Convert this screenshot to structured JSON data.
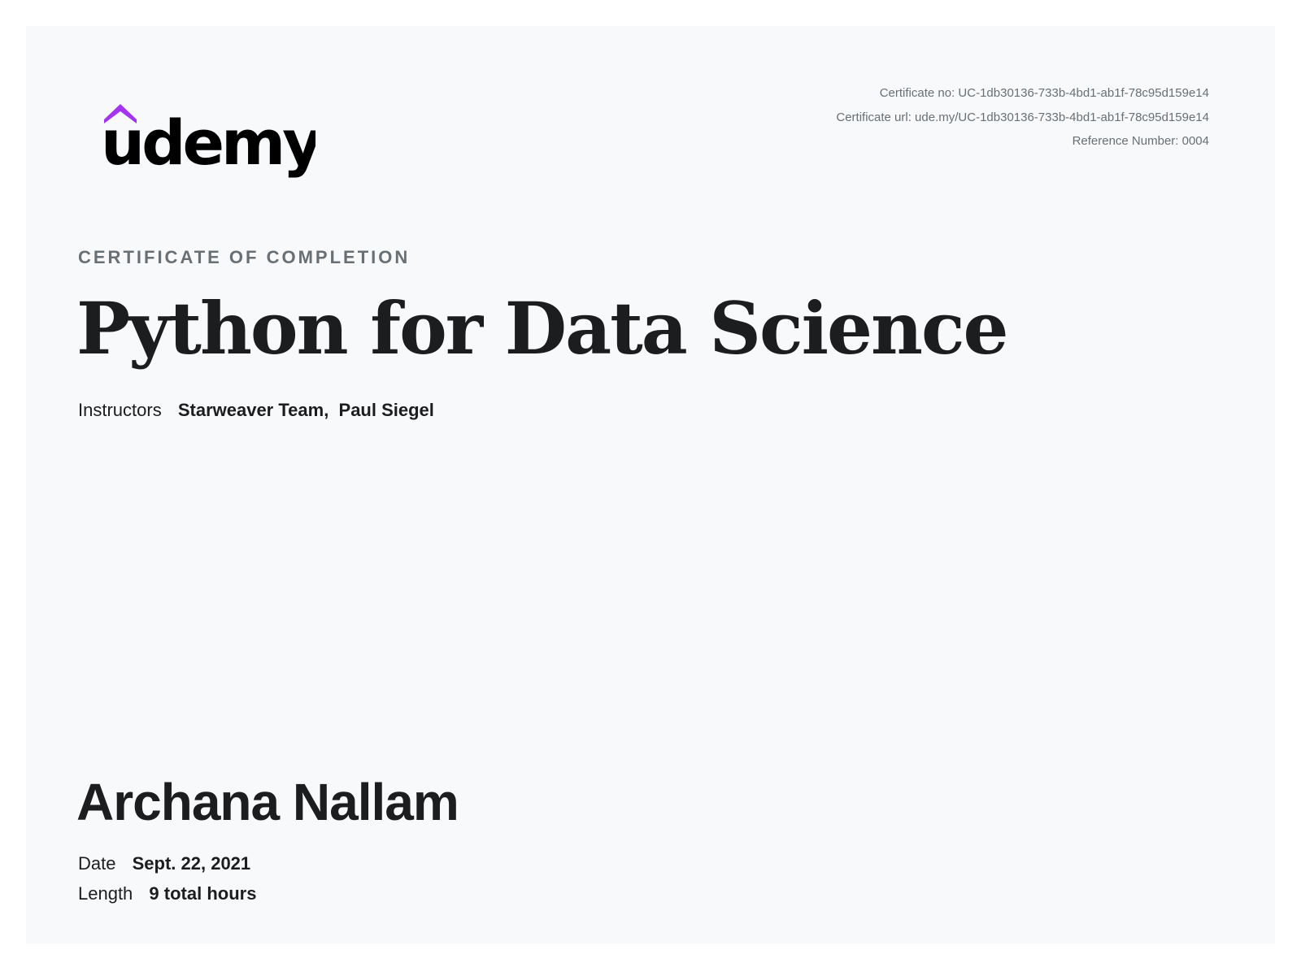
{
  "brand": {
    "name": "udemy",
    "accent": "#a435f0"
  },
  "certificate": {
    "number_label": "Certificate no: UC-1db30136-733b-4bd1-ab1f-78c95d159e14",
    "url_label": "Certificate url: ude.my/UC-1db30136-733b-4bd1-ab1f-78c95d159e14",
    "reference_label": "Reference Number: 0004",
    "eyebrow": "CERTIFICATE OF COMPLETION",
    "course_title": "Python for Data Science",
    "instructors_label": "Instructors",
    "instructors": "Starweaver Team,  Paul Siegel",
    "recipient": "Archana Nallam",
    "date_label": "Date",
    "date": "Sept. 22, 2021",
    "length_label": "Length",
    "length": "9 total hours"
  }
}
